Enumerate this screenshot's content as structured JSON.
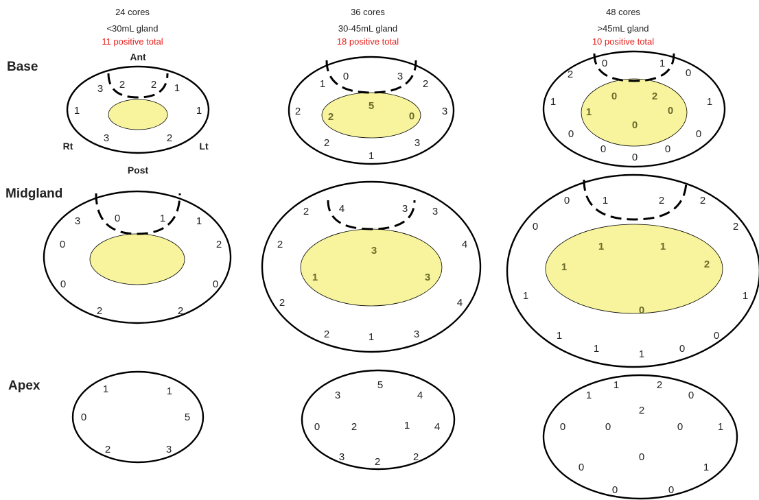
{
  "colors": {
    "positive_total": "#e8201c",
    "inner_zone_fill": "#f7f49d",
    "inner_number": "#6b6b2a"
  },
  "rows": {
    "base": "Base",
    "midgland": "Midgland",
    "apex": "Apex"
  },
  "orientation": {
    "ant": "Ant",
    "post": "Post",
    "rt": "Rt",
    "lt": "Lt"
  },
  "columns": [
    {
      "cores": "24 cores",
      "gland": "<30mL gland",
      "total": "11 positive total",
      "base": {
        "outer": [
          "3",
          "2",
          "2",
          "1",
          "1",
          "1",
          "3",
          "2"
        ],
        "inner": []
      },
      "midgland": {
        "outer": [
          "3",
          "0",
          "1",
          "1",
          "0",
          "2",
          "0",
          "0",
          "2",
          "2"
        ],
        "inner": []
      },
      "apex": {
        "outer": [
          "1",
          "1",
          "0",
          "5",
          "2",
          "3"
        ]
      }
    },
    {
      "cores": "36 cores",
      "gland": "30-45mL gland",
      "total": "18 positive total",
      "base": {
        "outer": [
          "1",
          "0",
          "3",
          "2",
          "2",
          "3",
          "2",
          "3",
          "1"
        ],
        "inner": [
          "5",
          "2",
          "0"
        ]
      },
      "midgland": {
        "outer": [
          "2",
          "4",
          "3",
          "3",
          "2",
          "4",
          "2",
          "4",
          "2",
          "1",
          "3"
        ],
        "inner": [
          "3",
          "1",
          "3"
        ]
      },
      "apex": {
        "outer": [
          "3",
          "5",
          "4",
          "0",
          "2",
          "1",
          "4",
          "3",
          "2",
          "2"
        ]
      }
    },
    {
      "cores": "48 cores",
      "gland": ">45mL gland",
      "total": "10 positive total",
      "base": {
        "outer": [
          "2",
          "0",
          "1",
          "0",
          "1",
          "1",
          "0",
          "0",
          "0",
          "0",
          "0"
        ],
        "inner": [
          "0",
          "2",
          "1",
          "0",
          "0"
        ]
      },
      "midgland": {
        "outer": [
          "0",
          "1",
          "2",
          "2",
          "0",
          "2",
          "1",
          "1",
          "1",
          "1",
          "1",
          "0",
          "0"
        ],
        "inner": [
          "1",
          "1",
          "1",
          "2",
          "0"
        ]
      },
      "apex": {
        "outer": [
          "1",
          "1",
          "2",
          "0",
          "2",
          "0",
          "0",
          "0",
          "1",
          "0",
          "0",
          "1",
          "0",
          "0"
        ]
      }
    }
  ]
}
